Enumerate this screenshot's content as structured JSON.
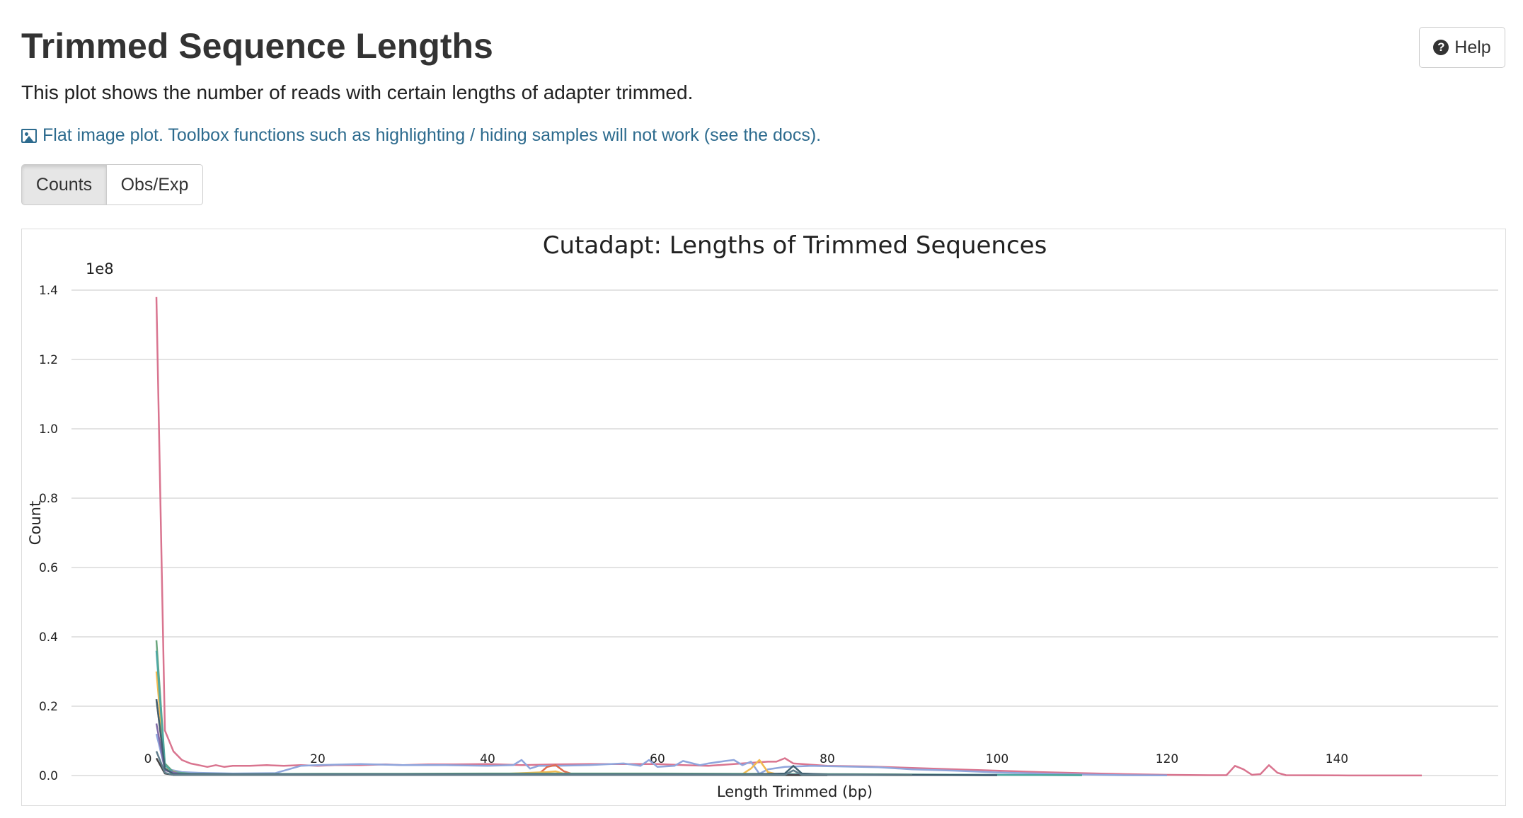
{
  "page": {
    "title": "Trimmed Sequence Lengths",
    "help_label": "Help",
    "description": "This plot shows the number of reads with certain lengths of adapter trimmed.",
    "flat_note": "Flat image plot. Toolbox functions such as highlighting / hiding samples will not work (see the docs).",
    "buttons": [
      {
        "label": "Counts",
        "active": true
      },
      {
        "label": "Obs/Exp",
        "active": false
      }
    ],
    "link_color": "#2d6b8e"
  },
  "chart_data": {
    "type": "line",
    "title": "Cutadapt: Lengths of Trimmed Sequences",
    "xlabel": "Length Trimmed (bp)",
    "ylabel": "Count",
    "y_multiplier_label": "1e8",
    "xlim": [
      -9,
      159
    ],
    "ylim": [
      0,
      1.4
    ],
    "x_ticks": [
      0,
      20,
      40,
      60,
      80,
      100,
      120,
      140
    ],
    "y_ticks": [
      0.0,
      0.2,
      0.4,
      0.6,
      0.8,
      1.0,
      1.2,
      1.4
    ],
    "grid": true,
    "series": [
      {
        "color": "#d9748f",
        "points": [
          [
            1,
            1.38
          ],
          [
            2,
            0.13
          ],
          [
            3,
            0.07
          ],
          [
            4,
            0.045
          ],
          [
            5,
            0.035
          ],
          [
            6,
            0.03
          ],
          [
            7,
            0.025
          ],
          [
            8,
            0.03
          ],
          [
            9,
            0.025
          ],
          [
            10,
            0.028
          ],
          [
            12,
            0.028
          ],
          [
            14,
            0.03
          ],
          [
            16,
            0.028
          ],
          [
            18,
            0.03
          ],
          [
            20,
            0.028
          ],
          [
            22,
            0.03
          ],
          [
            25,
            0.03
          ],
          [
            28,
            0.032
          ],
          [
            30,
            0.03
          ],
          [
            33,
            0.032
          ],
          [
            36,
            0.032
          ],
          [
            40,
            0.033
          ],
          [
            44,
            0.03
          ],
          [
            48,
            0.032
          ],
          [
            52,
            0.033
          ],
          [
            56,
            0.033
          ],
          [
            60,
            0.033
          ],
          [
            63,
            0.03
          ],
          [
            66,
            0.028
          ],
          [
            70,
            0.035
          ],
          [
            73,
            0.04
          ],
          [
            74,
            0.04
          ],
          [
            75,
            0.05
          ],
          [
            76,
            0.035
          ],
          [
            80,
            0.028
          ],
          [
            85,
            0.026
          ],
          [
            90,
            0.022
          ],
          [
            95,
            0.018
          ],
          [
            100,
            0.014
          ],
          [
            105,
            0.01
          ],
          [
            110,
            0.007
          ],
          [
            115,
            0.004
          ],
          [
            120,
            0.002
          ],
          [
            125,
            0.001
          ],
          [
            127,
            0.001
          ],
          [
            128,
            0.028
          ],
          [
            129,
            0.018
          ],
          [
            130,
            0.002
          ],
          [
            131,
            0.004
          ],
          [
            132,
            0.03
          ],
          [
            133,
            0.008
          ],
          [
            134,
            0.001
          ],
          [
            140,
            0.0005
          ],
          [
            150,
            0.0002
          ]
        ]
      },
      {
        "color": "#8fa5dc",
        "points": [
          [
            1,
            0.12
          ],
          [
            2,
            0.02
          ],
          [
            4,
            0.01
          ],
          [
            6,
            0.008
          ],
          [
            10,
            0.006
          ],
          [
            15,
            0.007
          ],
          [
            18,
            0.028
          ],
          [
            20,
            0.03
          ],
          [
            25,
            0.033
          ],
          [
            30,
            0.03
          ],
          [
            35,
            0.03
          ],
          [
            40,
            0.028
          ],
          [
            43,
            0.03
          ],
          [
            44,
            0.045
          ],
          [
            45,
            0.02
          ],
          [
            46,
            0.028
          ],
          [
            48,
            0.028
          ],
          [
            52,
            0.03
          ],
          [
            56,
            0.035
          ],
          [
            58,
            0.028
          ],
          [
            59,
            0.045
          ],
          [
            60,
            0.025
          ],
          [
            62,
            0.028
          ],
          [
            63,
            0.042
          ],
          [
            65,
            0.03
          ],
          [
            66,
            0.035
          ],
          [
            68,
            0.042
          ],
          [
            69,
            0.045
          ],
          [
            70,
            0.03
          ],
          [
            71,
            0.04
          ],
          [
            72,
            0.005
          ],
          [
            73,
            0.018
          ],
          [
            75,
            0.025
          ],
          [
            78,
            0.028
          ],
          [
            82,
            0.026
          ],
          [
            86,
            0.024
          ],
          [
            90,
            0.018
          ],
          [
            95,
            0.014
          ],
          [
            100,
            0.009
          ],
          [
            105,
            0.006
          ],
          [
            110,
            0.003
          ],
          [
            115,
            0.001
          ],
          [
            120,
            0.0005
          ]
        ]
      },
      {
        "color": "#e06c4f",
        "points": [
          [
            1,
            0.22
          ],
          [
            2,
            0.015
          ],
          [
            4,
            0.004
          ],
          [
            10,
            0.003
          ],
          [
            20,
            0.002
          ],
          [
            30,
            0.003
          ],
          [
            40,
            0.004
          ],
          [
            46,
            0.004
          ],
          [
            47,
            0.025
          ],
          [
            48,
            0.03
          ],
          [
            49,
            0.012
          ],
          [
            50,
            0.004
          ],
          [
            60,
            0.004
          ],
          [
            70,
            0.003
          ],
          [
            80,
            0.002
          ],
          [
            90,
            0.001
          ]
        ]
      },
      {
        "color": "#f2b94f",
        "points": [
          [
            1,
            0.3
          ],
          [
            2,
            0.02
          ],
          [
            4,
            0.004
          ],
          [
            10,
            0.003
          ],
          [
            20,
            0.003
          ],
          [
            30,
            0.003
          ],
          [
            40,
            0.003
          ],
          [
            47,
            0.01
          ],
          [
            48,
            0.012
          ],
          [
            49,
            0.005
          ],
          [
            60,
            0.004
          ],
          [
            70,
            0.004
          ],
          [
            71,
            0.02
          ],
          [
            72,
            0.045
          ],
          [
            73,
            0.01
          ],
          [
            74,
            0.004
          ],
          [
            80,
            0.002
          ],
          [
            90,
            0.001
          ]
        ]
      },
      {
        "color": "#6aa67d",
        "points": [
          [
            1,
            0.39
          ],
          [
            2,
            0.035
          ],
          [
            3,
            0.01
          ],
          [
            5,
            0.005
          ],
          [
            10,
            0.004
          ],
          [
            20,
            0.005
          ],
          [
            30,
            0.005
          ],
          [
            40,
            0.006
          ],
          [
            50,
            0.006
          ],
          [
            60,
            0.006
          ],
          [
            70,
            0.005
          ],
          [
            80,
            0.004
          ],
          [
            90,
            0.003
          ],
          [
            100,
            0.002
          ],
          [
            110,
            0.001
          ]
        ]
      },
      {
        "color": "#4ea8a3",
        "points": [
          [
            1,
            0.36
          ],
          [
            2,
            0.03
          ],
          [
            3,
            0.008
          ],
          [
            5,
            0.004
          ],
          [
            20,
            0.004
          ],
          [
            40,
            0.004
          ],
          [
            60,
            0.004
          ],
          [
            80,
            0.003
          ],
          [
            100,
            0.002
          ],
          [
            110,
            0.001
          ]
        ]
      },
      {
        "color": "#7f6aa6",
        "points": [
          [
            1,
            0.15
          ],
          [
            2,
            0.015
          ],
          [
            4,
            0.003
          ],
          [
            20,
            0.003
          ],
          [
            40,
            0.003
          ],
          [
            60,
            0.003
          ],
          [
            80,
            0.002
          ],
          [
            100,
            0.001
          ]
        ]
      },
      {
        "color": "#3f6170",
        "points": [
          [
            1,
            0.22
          ],
          [
            2,
            0.02
          ],
          [
            3,
            0.004
          ],
          [
            10,
            0.003
          ],
          [
            30,
            0.003
          ],
          [
            50,
            0.003
          ],
          [
            70,
            0.003
          ],
          [
            75,
            0.006
          ],
          [
            76,
            0.028
          ],
          [
            77,
            0.006
          ],
          [
            80,
            0.003
          ],
          [
            90,
            0.002
          ],
          [
            100,
            0.001
          ]
        ]
      },
      {
        "color": "#444444",
        "points": [
          [
            1,
            0.05
          ],
          [
            2,
            0.006
          ],
          [
            3,
            0.002
          ],
          [
            20,
            0.002
          ],
          [
            40,
            0.002
          ],
          [
            60,
            0.002
          ],
          [
            80,
            0.001
          ]
        ]
      },
      {
        "color": "#607d8b",
        "points": [
          [
            1,
            0.07
          ],
          [
            2,
            0.008
          ],
          [
            3,
            0.002
          ],
          [
            20,
            0.002
          ],
          [
            40,
            0.002
          ],
          [
            60,
            0.002
          ],
          [
            75,
            0.002
          ],
          [
            76,
            0.015
          ],
          [
            77,
            0.002
          ],
          [
            90,
            0.001
          ]
        ]
      }
    ]
  }
}
